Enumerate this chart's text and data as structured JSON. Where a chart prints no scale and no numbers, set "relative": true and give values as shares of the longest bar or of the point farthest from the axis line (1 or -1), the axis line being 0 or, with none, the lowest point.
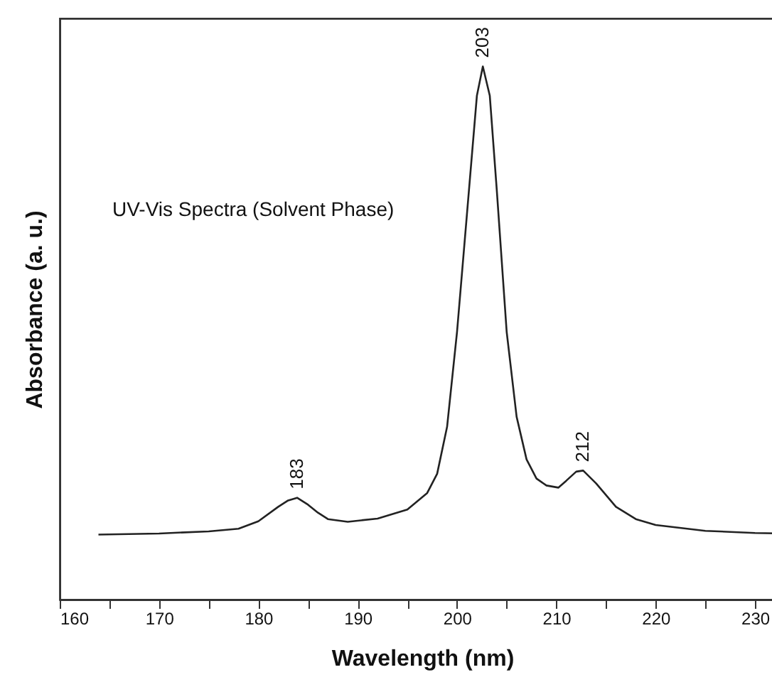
{
  "chart_data": {
    "type": "line",
    "relative": true,
    "xlabel": "Wavelength (nm)",
    "ylabel": "Absorbance (a. u.)",
    "grid": false,
    "marker": "none",
    "line_style": "solid",
    "xlim": [
      160,
      233
    ],
    "xticks": [
      160,
      {
        "value": 165,
        "label": null
      },
      170,
      {
        "value": 175,
        "label": null
      },
      180,
      {
        "value": 185,
        "label": null
      },
      190,
      {
        "value": 195,
        "label": null
      },
      200,
      {
        "value": 205,
        "label": null
      },
      210,
      {
        "value": 215,
        "label": null
      },
      220,
      {
        "value": 225,
        "label": null
      },
      230
    ],
    "x": [
      163.9,
      170,
      175,
      178,
      180,
      182,
      183,
      183.9,
      185,
      186,
      187,
      189,
      192,
      195,
      197,
      198,
      199,
      200,
      201,
      202,
      202.6,
      203.3,
      204,
      205,
      206,
      207,
      208,
      209,
      210.2,
      211,
      212,
      212.7,
      214,
      215,
      216,
      218,
      220,
      225,
      230,
      233
    ],
    "series": [
      {
        "color": "#222222",
        "values": [
          0.122,
          0.124,
          0.128,
          0.133,
          0.147,
          0.174,
          0.186,
          0.191,
          0.178,
          0.163,
          0.151,
          0.146,
          0.152,
          0.169,
          0.2,
          0.236,
          0.324,
          0.502,
          0.723,
          0.945,
          1.0,
          0.945,
          0.769,
          0.502,
          0.343,
          0.263,
          0.227,
          0.214,
          0.21,
          0.223,
          0.24,
          0.242,
          0.218,
          0.196,
          0.174,
          0.151,
          0.14,
          0.129,
          0.125,
          0.124
        ]
      }
    ],
    "annotations": [
      "UV-Vis Spectra (Solvent Phase)",
      {
        "text": "183",
        "x": 183.9,
        "y": 0.191
      },
      {
        "text": "203",
        "x": 202.6,
        "y": 1.0
      },
      {
        "text": "212",
        "x": 212.7,
        "y": 0.242
      }
    ]
  }
}
